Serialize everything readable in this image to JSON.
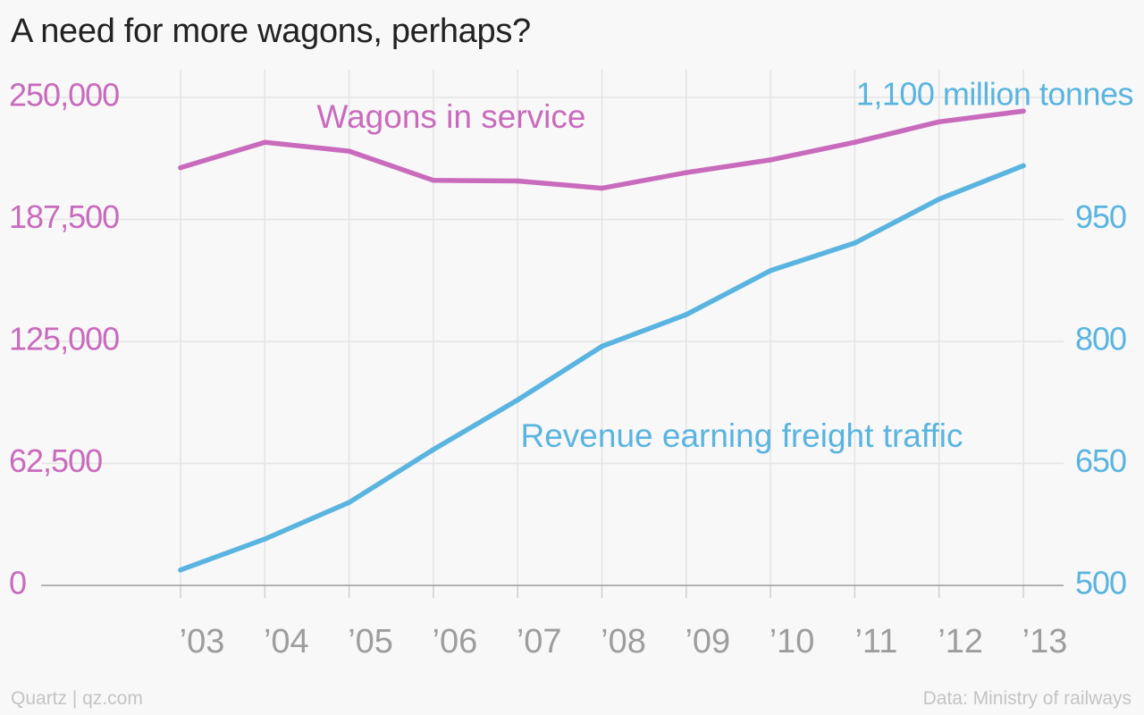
{
  "title": "A need for more wagons, perhaps?",
  "footer": {
    "source_left": "Quartz | qz.com",
    "source_right": "Data: Ministry of railways"
  },
  "colors": {
    "wagons": "#c96bbd",
    "freight": "#5ab4e0",
    "grid": "#e4e4e4",
    "baseline": "#9a9a9a",
    "tick_text": "#9d9d9d",
    "footer_text": "#c4c4c4",
    "title_text": "#222222"
  },
  "chart_data": {
    "type": "line",
    "categories": [
      "’03",
      "’04",
      "’05",
      "’06",
      "’07",
      "’08",
      "’09",
      "’10",
      "’11",
      "’12",
      "’13"
    ],
    "y_left": {
      "ticks": [
        0,
        62500,
        125000,
        187500,
        250000
      ],
      "tick_labels": [
        "0",
        "62,500",
        "125,000",
        "187,500",
        "250,000"
      ],
      "ylim": [
        0,
        250000
      ]
    },
    "y_right": {
      "ticks": [
        500,
        650,
        800,
        950,
        1100
      ],
      "tick_labels": [
        "500",
        "650",
        "800",
        "950"
      ],
      "top_label": "1,100 million tonnes",
      "ylim": [
        500,
        1100
      ]
    },
    "series": [
      {
        "name": "Wagons in service",
        "axis": "left",
        "values": [
          214000,
          227000,
          222500,
          207500,
          207200,
          203500,
          211500,
          218000,
          227000,
          237500,
          243000
        ]
      },
      {
        "name": "Revenue earning freight traffic",
        "axis": "right",
        "values": [
          519,
          557,
          602,
          667,
          728,
          794,
          833,
          887,
          921,
          975,
          1016
        ]
      }
    ],
    "grid": true,
    "legend": "inline labels"
  }
}
